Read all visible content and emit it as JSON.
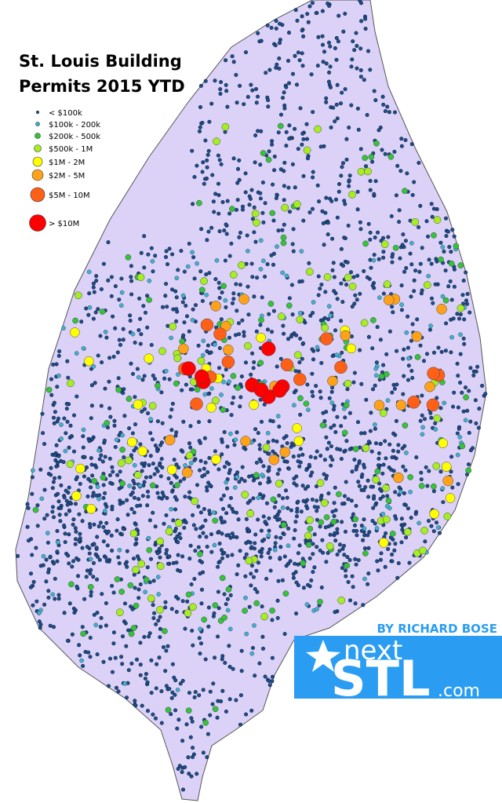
{
  "title_lines": [
    "St. Louis Building",
    "Permits 2015 YTD"
  ],
  "legend": [
    {
      "label": "< $100k",
      "color": "#1f4f8f"
    },
    {
      "label": "$100k - 200k",
      "color": "#3ab4d6"
    },
    {
      "label": "$200k - 500k",
      "color": "#33c43a"
    },
    {
      "label": "$500k - 1M",
      "color": "#a6ee22"
    },
    {
      "label": "$1M - 2M",
      "color": "#ffff00"
    },
    {
      "label": "$2M - 5M",
      "color": "#ffa21a"
    },
    {
      "label": "$5M - 10M",
      "color": "#ff6018"
    },
    {
      "label": "> $10M",
      "color": "#ff0000"
    }
  ],
  "credit": "BY RICHARD BOSE",
  "logo": {
    "word_top": "next",
    "word_main": "STL",
    "word_suffix": ".com",
    "color": "#2a9df2"
  },
  "map_fill": "#dcd2f8"
}
